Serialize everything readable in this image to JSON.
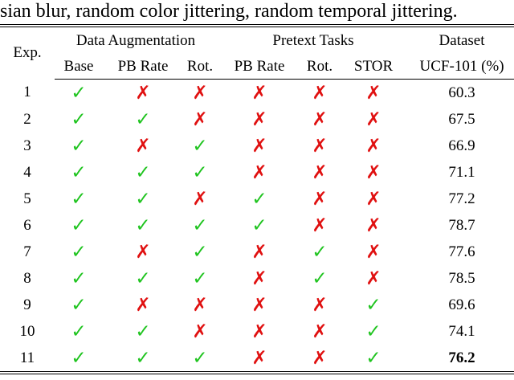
{
  "caption": "sian blur, random color jittering, random temporal jittering.",
  "table": {
    "header": {
      "exp": "Exp.",
      "groups": [
        "Data Augmentation",
        "Pretext Tasks",
        "Dataset"
      ],
      "columns": [
        "Base",
        "PB Rate",
        "Rot.",
        "PB Rate",
        "Rot.",
        "STOR",
        "UCF-101 (%)"
      ]
    },
    "rows": [
      [
        "1",
        "✓",
        "✗",
        "✗",
        "✗",
        "✗",
        "✗",
        "60.3"
      ],
      [
        "2",
        "✓",
        "✓",
        "✗",
        "✗",
        "✗",
        "✗",
        "67.5"
      ],
      [
        "3",
        "✓",
        "✗",
        "✓",
        "✗",
        "✗",
        "✗",
        "66.9"
      ],
      [
        "4",
        "✓",
        "✓",
        "✓",
        "✗",
        "✗",
        "✗",
        "71.1"
      ],
      [
        "5",
        "✓",
        "✓",
        "✗",
        "✓",
        "✗",
        "✗",
        "77.2"
      ],
      [
        "6",
        "✓",
        "✓",
        "✓",
        "✓",
        "✗",
        "✗",
        "78.7"
      ],
      [
        "7",
        "✓",
        "✗",
        "✓",
        "✗",
        "✓",
        "✗",
        "77.6"
      ],
      [
        "8",
        "✓",
        "✓",
        "✓",
        "✗",
        "✓",
        "✗",
        "78.5"
      ],
      [
        "9",
        "✓",
        "✗",
        "✗",
        "✗",
        "✗",
        "✓",
        "69.6"
      ],
      [
        "10",
        "✓",
        "✓",
        "✗",
        "✗",
        "✗",
        "✓",
        "74.1"
      ],
      [
        "11",
        "✓",
        "✓",
        "✓",
        "✗",
        "✗",
        "✓",
        "76.2"
      ]
    ]
  }
}
